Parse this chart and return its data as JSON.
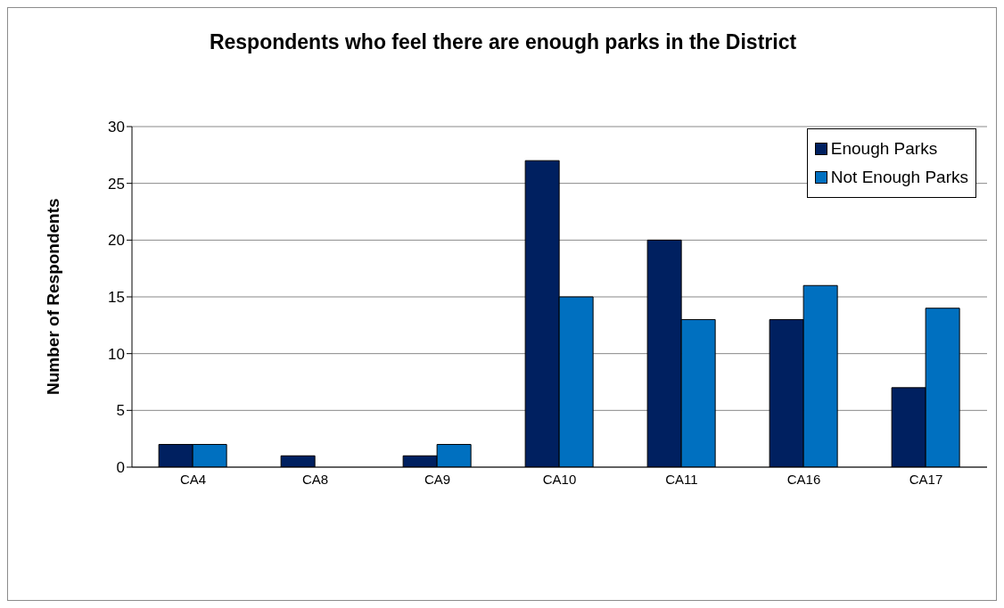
{
  "chart_data": {
    "type": "bar",
    "title": "Respondents who feel there are enough parks in the District",
    "ylabel": "Number of Respondents",
    "categories": [
      "CA4",
      "CA8",
      "CA9",
      "CA10",
      "CA11",
      "CA16",
      "CA17"
    ],
    "series": [
      {
        "name": "Enough Parks",
        "color": "#002060",
        "values": [
          2,
          1,
          1,
          27,
          20,
          13,
          7
        ]
      },
      {
        "name": "Not Enough Parks",
        "color": "#0070c0",
        "values": [
          2,
          0,
          2,
          15,
          13,
          16,
          14
        ]
      }
    ],
    "ylim": [
      0,
      30
    ],
    "yticks": [
      0,
      5,
      10,
      15,
      20,
      25,
      30
    ],
    "grid": "y",
    "legend": "top right"
  }
}
